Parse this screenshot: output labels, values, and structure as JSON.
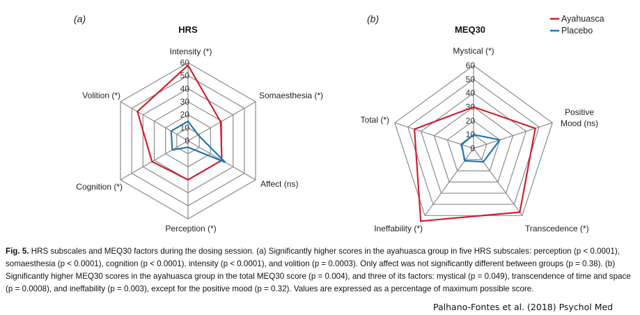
{
  "chart_data": [
    {
      "type": "radar",
      "panel": "(a)",
      "title": "HRS",
      "axes": [
        "Intensity (*)",
        "Somaesthesia (*)",
        "Affect (ns)",
        "Perception (*)",
        "Cognition (*)",
        "Volition (*)"
      ],
      "rlim": [
        0,
        60
      ],
      "ticks": [
        0,
        10,
        20,
        30,
        40,
        50,
        60
      ],
      "grid": true,
      "series": [
        {
          "name": "Ayahuasca",
          "color": "#d0202e",
          "values": [
            58,
            29,
            30,
            30,
            32,
            45
          ]
        },
        {
          "name": "Placebo",
          "color": "#1f77b4",
          "values": [
            15,
            9,
            33,
            5,
            14,
            15
          ]
        }
      ]
    },
    {
      "type": "radar",
      "panel": "(b)",
      "title": "MEQ30",
      "axes": [
        "Mystical (*)",
        "Positive Mood (ns)",
        "Transcedence (*)",
        "Ineffability (*)",
        "Total (*)"
      ],
      "rlim": [
        0,
        60
      ],
      "ticks": [
        0,
        10,
        20,
        30,
        40,
        50,
        60
      ],
      "grid": true,
      "legend": "top-right",
      "series": [
        {
          "name": "Ayahuasca",
          "color": "#d0202e",
          "values": [
            30,
            47,
            57,
            65,
            45
          ]
        },
        {
          "name": "Placebo",
          "color": "#1f77b4",
          "values": [
            10,
            20,
            12,
            11,
            9
          ]
        }
      ]
    }
  ],
  "caption": {
    "label": "Fig. 5.",
    "text": "HRS subscales and MEQ30 factors during the dosing session. (a) Significantly higher scores in the ayahuasca group in five HRS subscales: perception (p < 0.0001), somaesthesia (p < 0.0001), cognition (p < 0.0001), intensity (p < 0.0001), and volition (p = 0.0003). Only affect was not significantly different between groups (p = 0.38). (b) Significantly higher MEQ30 scores in the ayahuasca group in the total MEQ30 score (p = 0.004), and three of its factors: mystical (p = 0.049), transcendence of time and space (p = 0.0008), and ineffability (p = 0.003), except for the positive mood (p = 0.32). Values are expressed as a percentage of maximum possible score."
  },
  "credit": "Palhano-Fontes et al. (2018) Psychol Med"
}
